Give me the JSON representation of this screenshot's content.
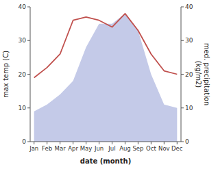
{
  "chart_data": {
    "type": "area",
    "categories": [
      "Jan",
      "Feb",
      "Mar",
      "Apr",
      "May",
      "Jun",
      "Jul",
      "Aug",
      "Sep",
      "Oct",
      "Nov",
      "Dec"
    ],
    "series": [
      {
        "type": "area",
        "color": "#b0b8e0",
        "values": [
          9,
          11,
          14,
          18,
          28,
          35,
          35,
          38,
          33,
          20,
          11,
          10
        ]
      },
      {
        "type": "line",
        "color": "#c0504d",
        "axis": "y2",
        "values": [
          19,
          22,
          26,
          36,
          37,
          36,
          34,
          38,
          33,
          26,
          21,
          20
        ]
      }
    ],
    "x_label": "date (month)",
    "y_label": "max temp (C)",
    "y2_label": "med. precipitation\n(kg/m2)",
    "ylim": [
      0,
      40
    ],
    "yticks": [
      0,
      10,
      20,
      30,
      40
    ],
    "y2lim": [
      0,
      40
    ],
    "y2ticks": [
      0,
      10,
      20,
      30,
      40
    ]
  }
}
